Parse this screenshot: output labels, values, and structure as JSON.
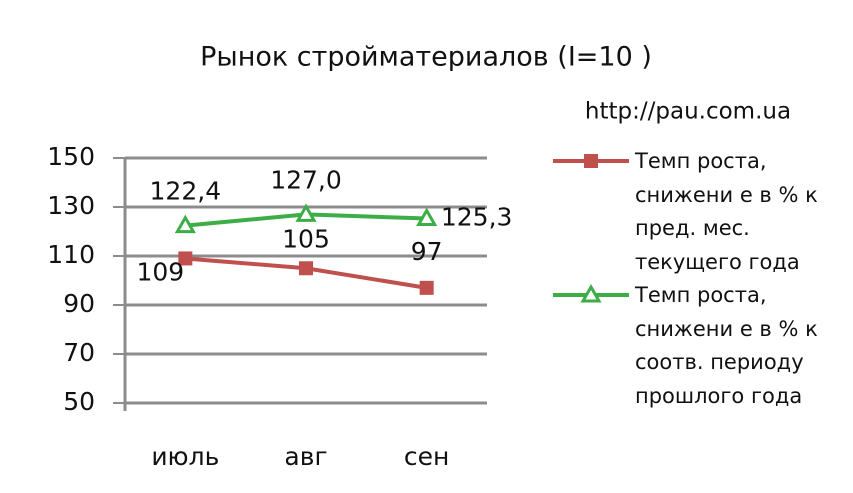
{
  "chart_data": {
    "type": "line",
    "title": "Рынок стройматериалов (I=10 )",
    "annotation": "http://pau.com.ua",
    "categories": [
      "июль",
      "авг",
      "сен"
    ],
    "series": [
      {
        "name": "Темп роста, снижени е в % к  пред. мес. текущего года",
        "color": "#c0504d",
        "marker": "square",
        "values": [
          109,
          105,
          97
        ]
      },
      {
        "name": "Темп роста, снижени е в % к  соотв. периоду прошлого года",
        "color": "#3dae47",
        "marker": "triangle",
        "values": [
          122.4,
          127.0,
          125.3
        ],
        "value_labels": [
          "122,4",
          "127,0",
          "125,3"
        ]
      }
    ],
    "ylim": [
      50,
      150
    ],
    "yticks": [
      50,
      70,
      90,
      110,
      130,
      150
    ],
    "grid": true,
    "legend": "right"
  }
}
